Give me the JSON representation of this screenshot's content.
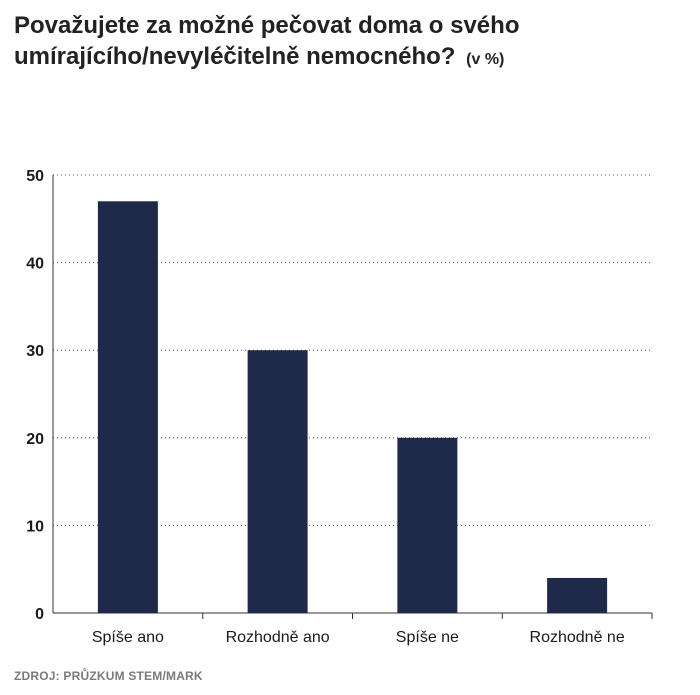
{
  "title": "Považujete za možné pečovat doma o svého umírajícího/nevyléčitelně nemocného?",
  "title_unit": "(v %)",
  "source": "ZDROJ: PRŮZKUM STEM/MARK",
  "colors": {
    "bar": "#1f2a4b",
    "grid": "#555555",
    "axis": "#333333",
    "text": "#1a1a1a"
  },
  "chart_data": {
    "type": "bar",
    "categories": [
      "Spíše ano",
      "Rozhodně ano",
      "Spíše ne",
      "Rozhodně ne"
    ],
    "values": [
      47,
      30,
      20,
      4
    ],
    "ylim": [
      0,
      50
    ],
    "yticks": [
      0,
      10,
      20,
      30,
      40,
      50
    ],
    "grid": true,
    "xlabel": "",
    "ylabel": ""
  }
}
